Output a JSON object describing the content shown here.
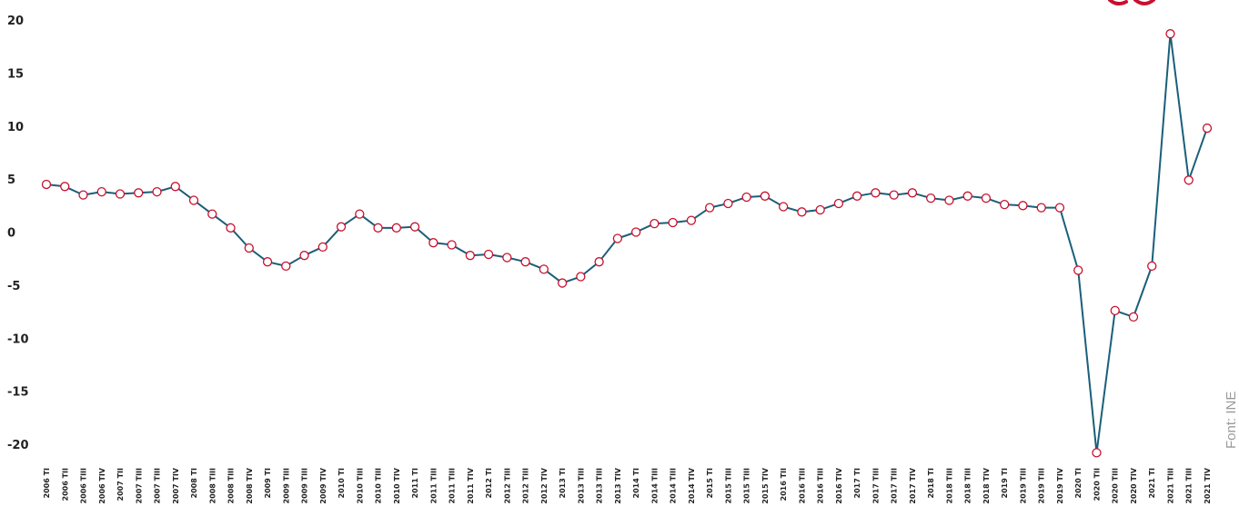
{
  "source_note": "Font: INE",
  "colors": {
    "line": "#1a5f7a",
    "marker_stroke": "#c8102e",
    "marker_fill": "#ffffff",
    "logo": "#c8102e"
  },
  "logo_icon": "partial-red-logo-icon",
  "chart_data": {
    "type": "line",
    "title": "",
    "xlabel": "",
    "ylabel": "",
    "ylim": [
      -20,
      20
    ],
    "yticks": [
      20,
      15,
      10,
      5,
      0,
      -5,
      -10,
      -15,
      -20
    ],
    "grid": false,
    "legend": "none",
    "categories": [
      "2006 TI",
      "2006 TII",
      "2006 TIII",
      "2006 TIV",
      "2007 TI",
      "2007 TII",
      "2007 TIII",
      "2007 TIV",
      "2008 TI",
      "2008 TII",
      "2008 TIII",
      "2008 TIV",
      "2009 TI",
      "2009 TII",
      "2009 TIII",
      "2009 TIV",
      "2010 TI",
      "2010 TII",
      "2010 TIII",
      "2010 TIV",
      "2011 TI",
      "2011 TII",
      "2011 TIII",
      "2011 TIV",
      "2012 TI",
      "2012 TII",
      "2012 TIII",
      "2012 TIV",
      "2013 TI",
      "2013 TII",
      "2013 TIII",
      "2013 TIV",
      "2014 TI",
      "2014 TII",
      "2014 TIII",
      "2014 TIV",
      "2015 TI",
      "2015 TII",
      "2015 TIII",
      "2015 TIV",
      "2016 TI",
      "2016 TII",
      "2016 TIII",
      "2016 TIV",
      "2017 TI",
      "2017 TII",
      "2017 TIII",
      "2017 TIV",
      "2018 TI",
      "2018 TII",
      "2018 TIII",
      "2018 TIV",
      "2019 TI",
      "2019 TII",
      "2019 TIII",
      "2019 TIV",
      "2020 TI",
      "2020 TII",
      "2020 TIII",
      "2020 TIV",
      "2021 TI",
      "2021 TII",
      "2021 TIII",
      "2021 TIV"
    ],
    "x_labels_shown": [
      "2006 TI",
      "2006 TII",
      "2006 TIII",
      "2006 TIV",
      "2007 TII",
      "2007 TIII",
      "2007 TIII",
      "2007 TIV",
      "2008 TI",
      "2008 TIII",
      "2008 TIII",
      "2008 TIV",
      "2009 TI",
      "2009 TIII",
      "2009 TIII",
      "2009 TIV",
      "2010 TI",
      "2010 TIII",
      "2010 TIII",
      "2010 TIV",
      "2011 TI",
      "2011 TIII",
      "2011 TIII",
      "2011 TIV",
      "2012 TI",
      "2012 TIII",
      "2012 TIII",
      "2012 TIV",
      "2013 TI",
      "2013 TIII",
      "2013 TIII",
      "2013 TIV",
      "2014 TI",
      "2014 TIII",
      "2014 TIII",
      "2014 TIV",
      "2015 TI",
      "2015 TIII",
      "2015 TIII",
      "2015 TIV",
      "2016 TII",
      "2016 TIII",
      "2016 TIII",
      "2016 TIV",
      "2017 TI",
      "2017 TIII",
      "2017 TIII",
      "2017 TIV",
      "2018 TI",
      "2018 TIII",
      "2018 TIII",
      "2018 TIV",
      "2019 TI",
      "2019 TIII",
      "2019 TIII",
      "2019 TIV",
      "2020 TI",
      "2020 TII",
      "2020 TIII",
      "2020 TIV",
      "2021 TI",
      "2021 TIII",
      "2021 TIII",
      "2021 TIV"
    ],
    "series": [
      {
        "values": [
          4.5,
          4.3,
          3.5,
          3.8,
          3.6,
          3.7,
          3.8,
          4.3,
          3.0,
          1.7,
          0.4,
          -1.5,
          -2.8,
          -3.2,
          -2.2,
          -1.4,
          0.5,
          1.7,
          0.4,
          0.4,
          0.5,
          -1.0,
          -1.2,
          -2.2,
          -2.1,
          -2.4,
          -2.8,
          -3.5,
          -4.8,
          -4.2,
          -2.8,
          -0.6,
          0.0,
          0.8,
          0.9,
          1.1,
          2.3,
          2.7,
          3.3,
          3.4,
          2.4,
          1.9,
          2.1,
          2.7,
          3.4,
          3.7,
          3.5,
          3.7,
          3.2,
          3.0,
          3.4,
          3.2,
          2.6,
          2.5,
          2.3,
          2.3,
          -3.6,
          -20.8,
          -7.4,
          -8.0,
          -3.2,
          18.7,
          4.9,
          9.8
        ]
      }
    ]
  }
}
